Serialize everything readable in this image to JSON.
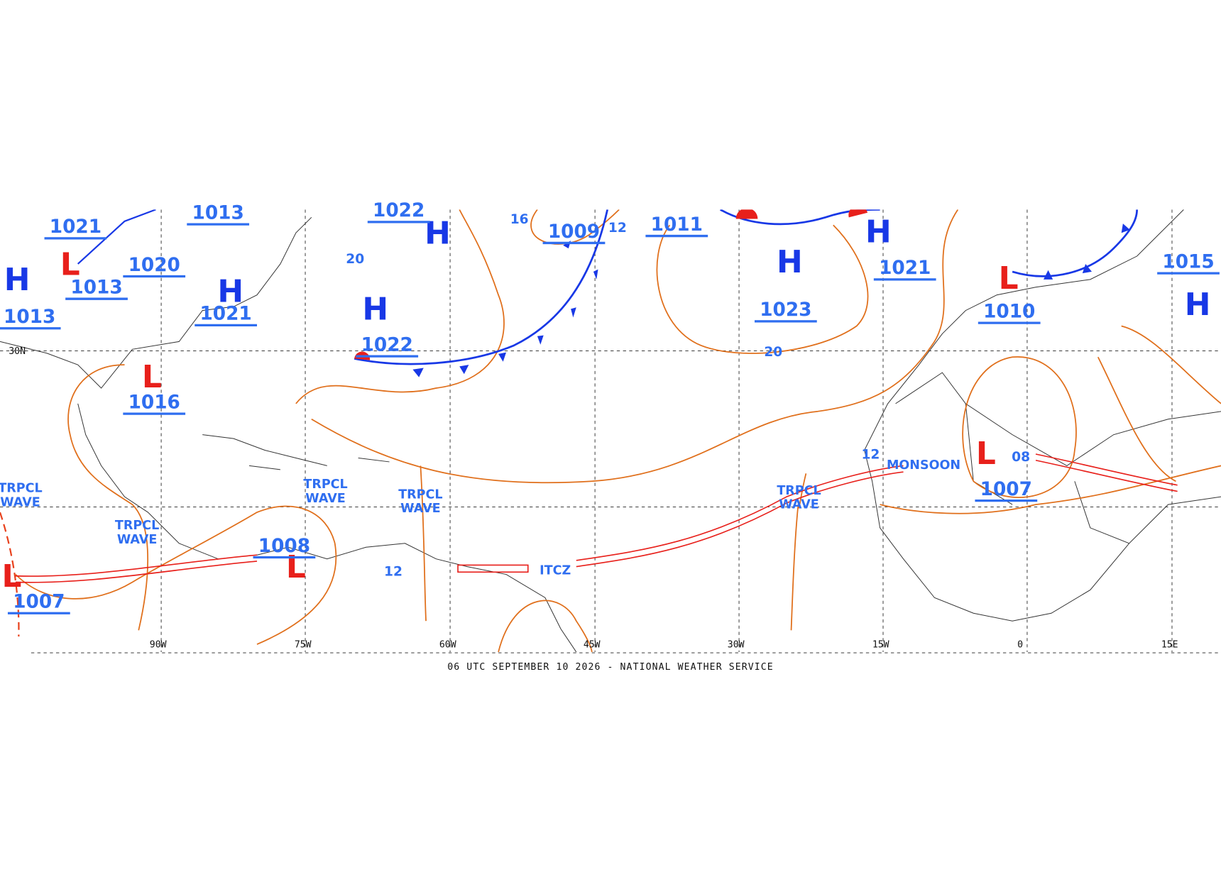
{
  "map": {
    "pressure_centers": [
      "H",
      "H",
      "H",
      "H",
      "H",
      "H",
      "H",
      "L",
      "L",
      "L",
      "L",
      "L",
      "L"
    ],
    "pressure_values": [
      "1021",
      "1013",
      "1022",
      "1009",
      "1011",
      "1020",
      "1013",
      "1013",
      "1021",
      "1022",
      "1016",
      "1008",
      "1007",
      "1023",
      "1021",
      "1010",
      "1007",
      "1015"
    ],
    "isobar_labels": [
      "20",
      "16",
      "12",
      "20",
      "12",
      "12",
      "08"
    ],
    "tropical_waves": [
      [
        "TRPCL",
        "WAVE"
      ],
      [
        "TRPCL",
        "WAVE"
      ],
      [
        "TRPCL",
        "WAVE"
      ],
      [
        "TRPCL",
        "WAVE"
      ],
      [
        "TRPCL",
        "WAVE"
      ]
    ],
    "feature_labels": [
      "MONSOON",
      "ITCZ"
    ],
    "longitude_labels": [
      "90W",
      "75W",
      "60W",
      "45W",
      "30W",
      "15W",
      "0",
      "15E"
    ],
    "latitude_labels": [
      "30N"
    ],
    "footer": "06 UTC SEPTEMBER 10 2026 - NATIONAL WEATHER SERVICE"
  }
}
